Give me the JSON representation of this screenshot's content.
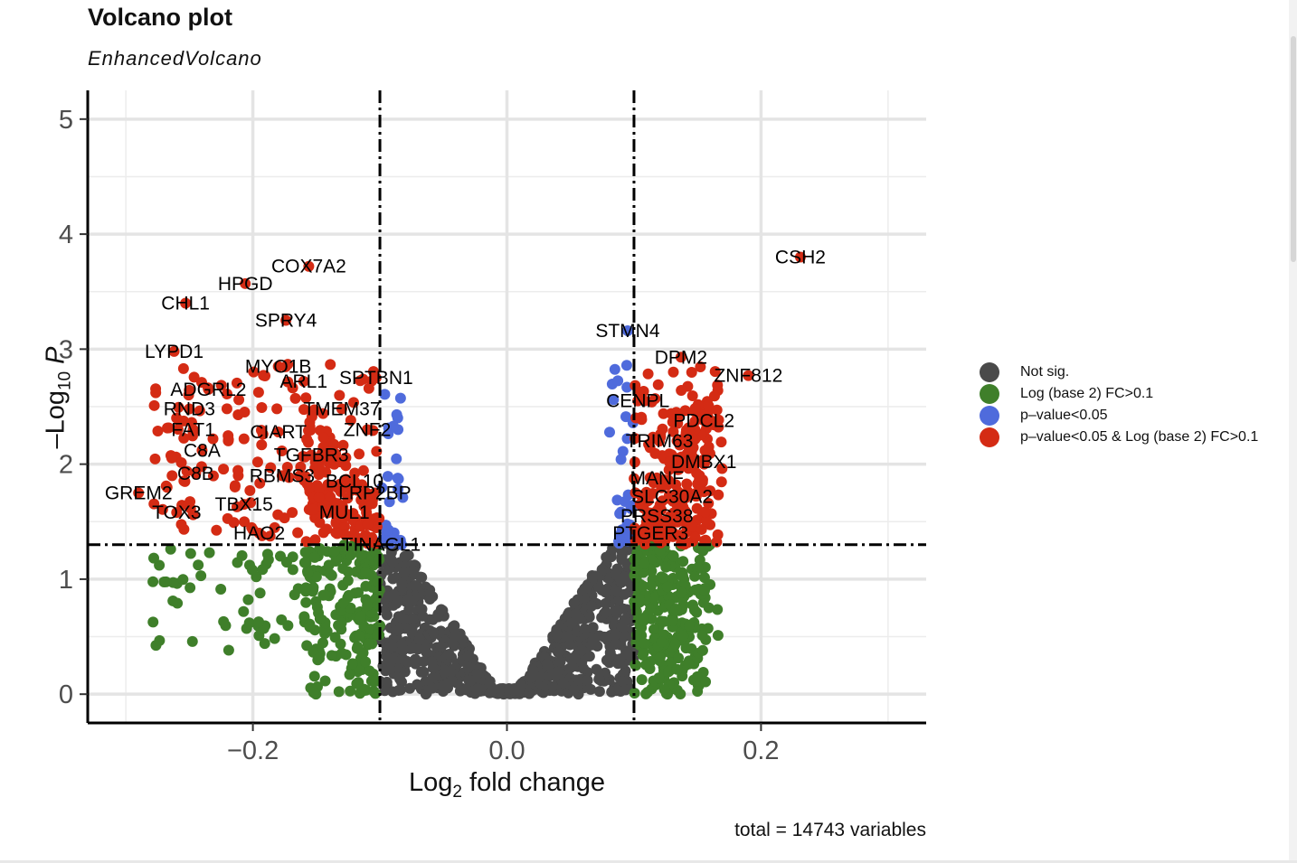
{
  "title": "Volcano plot",
  "subtitle": "EnhancedVolcano",
  "caption": "total = 14743 variables",
  "colors": {
    "ns": "#4a4a4a",
    "fc": "#3f7f2a",
    "p": "#4f6bdc",
    "both": "#d42b14",
    "cutoff_line": "#000000"
  },
  "legend": [
    {
      "label": "Not sig.",
      "color": "#4a4a4a"
    },
    {
      "label": "Log (base 2) FC>0.1",
      "color": "#3f7f2a"
    },
    {
      "label": "p–value<0.05",
      "color": "#4f6bdc"
    },
    {
      "label": "p–value<0.05 & Log (base 2) FC>0.1",
      "color": "#d42b14"
    }
  ],
  "axes": {
    "x_title": "Log2 fold change",
    "y_title": "–Log10 P"
  },
  "chart_data": {
    "type": "scatter",
    "title": "Volcano plot",
    "subtitle": "EnhancedVolcano",
    "xlabel": "Log2 fold change",
    "ylabel": "–Log10 P",
    "xlim": [
      -0.33,
      0.33
    ],
    "ylim": [
      -0.25,
      5.25
    ],
    "x_ticks": [
      -0.2,
      0.0,
      0.2
    ],
    "x_tick_labels": [
      "−0.2",
      "0.0",
      "0.2"
    ],
    "y_ticks": [
      0,
      1,
      2,
      3,
      4,
      5
    ],
    "y_tick_labels": [
      "0",
      "1",
      "2",
      "3",
      "4",
      "5"
    ],
    "grid": true,
    "legend_position": "right",
    "fc_cutoff": 0.1,
    "p_cutoff_neglog10": 1.3,
    "total_variables": 14743,
    "labeled_points": [
      {
        "gene": "CSH2",
        "x": 0.231,
        "y": 3.8
      },
      {
        "gene": "COX7A2",
        "x": -0.156,
        "y": 3.72
      },
      {
        "gene": "HPGD",
        "x": -0.206,
        "y": 3.57
      },
      {
        "gene": "CHL1",
        "x": -0.253,
        "y": 3.4
      },
      {
        "gene": "SPRY4",
        "x": -0.174,
        "y": 3.25
      },
      {
        "gene": "STMN4",
        "x": 0.095,
        "y": 3.16
      },
      {
        "gene": "LYPD1",
        "x": -0.262,
        "y": 2.98
      },
      {
        "gene": "MYO1B",
        "x": -0.18,
        "y": 2.85
      },
      {
        "gene": "DPM2",
        "x": 0.137,
        "y": 2.93
      },
      {
        "gene": "ZNF812",
        "x": 0.19,
        "y": 2.77
      },
      {
        "gene": "SPTBN1",
        "x": -0.103,
        "y": 2.75
      },
      {
        "gene": "ARL1",
        "x": -0.16,
        "y": 2.72
      },
      {
        "gene": "ADGRL2",
        "x": -0.235,
        "y": 2.65
      },
      {
        "gene": "CENPL",
        "x": 0.103,
        "y": 2.55
      },
      {
        "gene": "RND3",
        "x": -0.25,
        "y": 2.48
      },
      {
        "gene": "TMEM37",
        "x": -0.13,
        "y": 2.48
      },
      {
        "gene": "PDCL2",
        "x": 0.155,
        "y": 2.38
      },
      {
        "gene": "FAT1",
        "x": -0.247,
        "y": 2.3
      },
      {
        "gene": "CIART",
        "x": -0.18,
        "y": 2.28
      },
      {
        "gene": "ZNF2",
        "x": -0.11,
        "y": 2.3
      },
      {
        "gene": "TRIM63",
        "x": 0.12,
        "y": 2.2
      },
      {
        "gene": "C8A",
        "x": -0.24,
        "y": 2.12
      },
      {
        "gene": "TGFBR3",
        "x": -0.154,
        "y": 2.08
      },
      {
        "gene": "DMBX1",
        "x": 0.155,
        "y": 2.02
      },
      {
        "gene": "C8B",
        "x": -0.245,
        "y": 1.92
      },
      {
        "gene": "RBMS3",
        "x": -0.177,
        "y": 1.9
      },
      {
        "gene": "MANF",
        "x": 0.118,
        "y": 1.88
      },
      {
        "gene": "BCL10",
        "x": -0.12,
        "y": 1.85
      },
      {
        "gene": "GREM2",
        "x": -0.29,
        "y": 1.75
      },
      {
        "gene": "LRP2BP",
        "x": -0.104,
        "y": 1.75
      },
      {
        "gene": "SLC30A2",
        "x": 0.13,
        "y": 1.72
      },
      {
        "gene": "TBX15",
        "x": -0.207,
        "y": 1.65
      },
      {
        "gene": "TOX3",
        "x": -0.26,
        "y": 1.58
      },
      {
        "gene": "MUL1",
        "x": -0.128,
        "y": 1.58
      },
      {
        "gene": "PRSS38",
        "x": 0.118,
        "y": 1.55
      },
      {
        "gene": "HAO2",
        "x": -0.195,
        "y": 1.4
      },
      {
        "gene": "PTGER3",
        "x": 0.113,
        "y": 1.4
      },
      {
        "gene": "TINAGL1",
        "x": -0.099,
        "y": 1.3
      }
    ]
  }
}
